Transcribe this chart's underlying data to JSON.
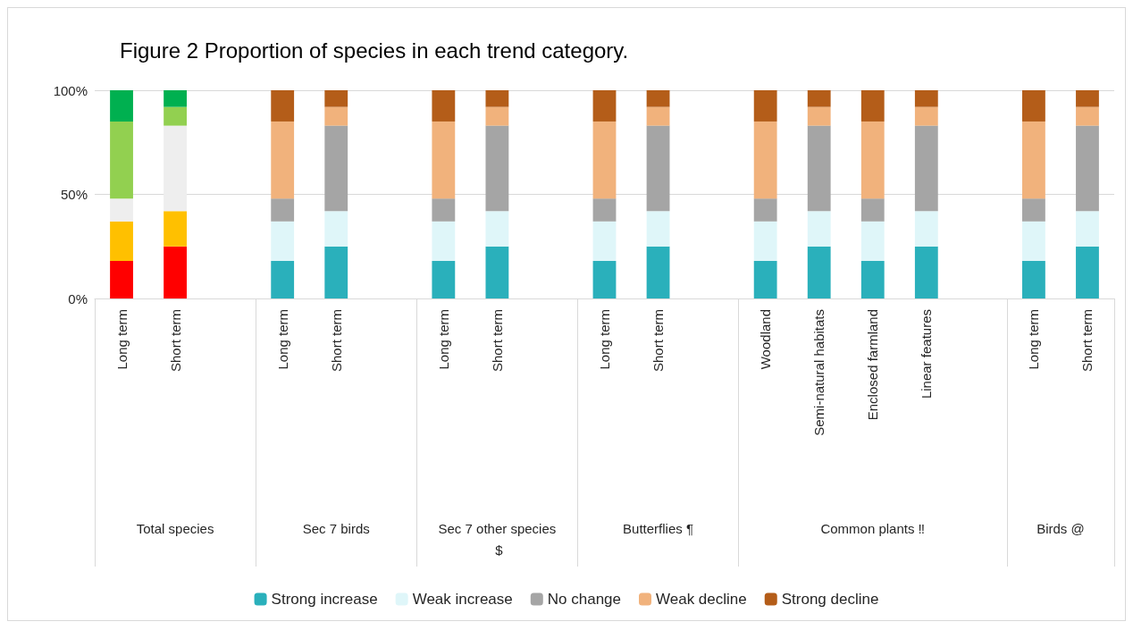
{
  "chart_data": {
    "type": "bar",
    "stacked": true,
    "title": "Figure 2 Proportion of species in each trend category.",
    "categories": [
      "Long term",
      "Short term",
      null,
      "Long term",
      "Short term",
      null,
      "Long term",
      "Short term",
      null,
      "Long term",
      "Short term",
      null,
      "Woodland",
      "Semi-natural habitats",
      "Enclosed farmland",
      "Linear features",
      null,
      "Long term",
      "Short term"
    ],
    "annotations": [
      "Total species",
      "Sec 7 birds",
      "Sec 7 other species $",
      "Butterflies ¶",
      "Common plants ‼",
      "Birds @"
    ],
    "series": [
      {
        "name": "Strong increase",
        "color": "#2ab0bb",
        "colors": [
          "#ff0000",
          "#ff0000",
          null,
          "#2ab0bb",
          "#2ab0bb",
          null,
          "#2ab0bb",
          "#2ab0bb",
          null,
          "#2ab0bb",
          "#2ab0bb",
          null,
          "#2ab0bb",
          "#2ab0bb",
          "#2ab0bb",
          "#2ab0bb",
          null,
          "#2ab0bb",
          "#2ab0bb"
        ],
        "values": [
          18,
          25,
          null,
          18,
          25,
          null,
          18,
          25,
          null,
          18,
          25,
          null,
          18,
          25,
          18,
          25,
          null,
          18,
          25
        ]
      },
      {
        "name": "Weak increase",
        "color": "#dff6f9",
        "colors": [
          "#ffc000",
          "#ffc000",
          null,
          "#dff6f9",
          "#dff6f9",
          null,
          "#dff6f9",
          "#dff6f9",
          null,
          "#dff6f9",
          "#dff6f9",
          null,
          "#dff6f9",
          "#dff6f9",
          "#dff6f9",
          "#dff6f9",
          null,
          "#dff6f9",
          "#dff6f9"
        ],
        "values": [
          19,
          17,
          null,
          19,
          17,
          null,
          19,
          17,
          null,
          19,
          17,
          null,
          19,
          17,
          19,
          17,
          null,
          19,
          17
        ]
      },
      {
        "name": "No change",
        "color": "#a5a5a5",
        "colors": [
          "#eeeeee",
          "#eeeeee",
          null,
          "#a5a5a5",
          "#a5a5a5",
          null,
          "#a5a5a5",
          "#a5a5a5",
          null,
          "#a5a5a5",
          "#a5a5a5",
          null,
          "#a5a5a5",
          "#a5a5a5",
          "#a5a5a5",
          "#a5a5a5",
          null,
          "#a5a5a5",
          "#a5a5a5"
        ],
        "values": [
          11,
          41,
          null,
          11,
          41,
          null,
          11,
          41,
          null,
          11,
          41,
          null,
          11,
          41,
          11,
          41,
          null,
          11,
          41
        ]
      },
      {
        "name": "Weak decline",
        "color": "#f1b27c",
        "colors": [
          "#92d050",
          "#92d050",
          null,
          "#f1b27c",
          "#f1b27c",
          null,
          "#f1b27c",
          "#f1b27c",
          null,
          "#f1b27c",
          "#f1b27c",
          null,
          "#f1b27c",
          "#f1b27c",
          "#f1b27c",
          "#f1b27c",
          null,
          "#f1b27c",
          "#f1b27c"
        ],
        "values": [
          37,
          9,
          null,
          37,
          9,
          null,
          37,
          9,
          null,
          37,
          9,
          null,
          37,
          9,
          37,
          9,
          null,
          37,
          9
        ]
      },
      {
        "name": "Strong decline",
        "color": "#b45d19",
        "colors": [
          "#00b050",
          "#00b050",
          null,
          "#b45d19",
          "#b45d19",
          null,
          "#b45d19",
          "#b45d19",
          null,
          "#b45d19",
          "#b45d19",
          null,
          "#b45d19",
          "#b45d19",
          "#b45d19",
          "#b45d19",
          null,
          "#b45d19",
          "#b45d19"
        ],
        "values": [
          15,
          8,
          null,
          15,
          8,
          null,
          15,
          8,
          null,
          15,
          8,
          null,
          15,
          8,
          15,
          8,
          null,
          15,
          8
        ]
      }
    ],
    "ylim": [
      0,
      100
    ],
    "yticks": [
      {
        "value": 0,
        "label": "0%"
      },
      {
        "value": 50,
        "label": "50%"
      },
      {
        "value": 100,
        "label": "100%"
      }
    ],
    "grid": "y",
    "legend": "bottom"
  }
}
